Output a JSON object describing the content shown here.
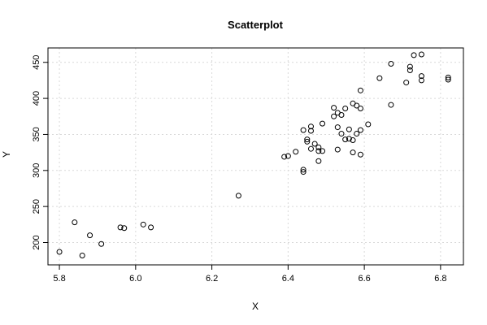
{
  "chart_data": {
    "type": "scatter",
    "title": "Scatterplot",
    "xlabel": "X",
    "ylabel": "Y",
    "xlim": [
      5.77,
      6.86
    ],
    "ylim": [
      169,
      470
    ],
    "xticks": [
      5.8,
      6.0,
      6.2,
      6.4,
      6.6,
      6.8
    ],
    "xtick_labels": [
      "5.8",
      "6.0",
      "6.2",
      "6.4",
      "6.6",
      "6.8"
    ],
    "yticks": [
      200,
      250,
      300,
      350,
      400,
      450
    ],
    "ytick_labels": [
      "200",
      "250",
      "300",
      "350",
      "400",
      "450"
    ],
    "grid": true,
    "points": [
      [
        5.8,
        187
      ],
      [
        5.84,
        228
      ],
      [
        5.86,
        182
      ],
      [
        5.88,
        210
      ],
      [
        5.91,
        198
      ],
      [
        5.96,
        221
      ],
      [
        5.97,
        220
      ],
      [
        6.02,
        225
      ],
      [
        6.04,
        221
      ],
      [
        6.27,
        265
      ],
      [
        6.39,
        319
      ],
      [
        6.4,
        320
      ],
      [
        6.42,
        326
      ],
      [
        6.44,
        301
      ],
      [
        6.44,
        298
      ],
      [
        6.44,
        356
      ],
      [
        6.45,
        340
      ],
      [
        6.45,
        343
      ],
      [
        6.46,
        330
      ],
      [
        6.46,
        355
      ],
      [
        6.46,
        361
      ],
      [
        6.47,
        337
      ],
      [
        6.48,
        313
      ],
      [
        6.48,
        327
      ],
      [
        6.48,
        332
      ],
      [
        6.49,
        327
      ],
      [
        6.49,
        365
      ],
      [
        6.52,
        387
      ],
      [
        6.52,
        375
      ],
      [
        6.53,
        360
      ],
      [
        6.53,
        329
      ],
      [
        6.53,
        380
      ],
      [
        6.54,
        351
      ],
      [
        6.54,
        377
      ],
      [
        6.55,
        343
      ],
      [
        6.55,
        386
      ],
      [
        6.56,
        357
      ],
      [
        6.56,
        344
      ],
      [
        6.57,
        325
      ],
      [
        6.57,
        342
      ],
      [
        6.57,
        393
      ],
      [
        6.58,
        351
      ],
      [
        6.58,
        390
      ],
      [
        6.59,
        356
      ],
      [
        6.59,
        322
      ],
      [
        6.59,
        386
      ],
      [
        6.59,
        411
      ],
      [
        6.61,
        364
      ],
      [
        6.64,
        428
      ],
      [
        6.67,
        391
      ],
      [
        6.67,
        448
      ],
      [
        6.71,
        422
      ],
      [
        6.72,
        444
      ],
      [
        6.72,
        439
      ],
      [
        6.73,
        460
      ],
      [
        6.75,
        461
      ],
      [
        6.75,
        431
      ],
      [
        6.75,
        425
      ],
      [
        6.82,
        429
      ],
      [
        6.82,
        426
      ]
    ]
  }
}
